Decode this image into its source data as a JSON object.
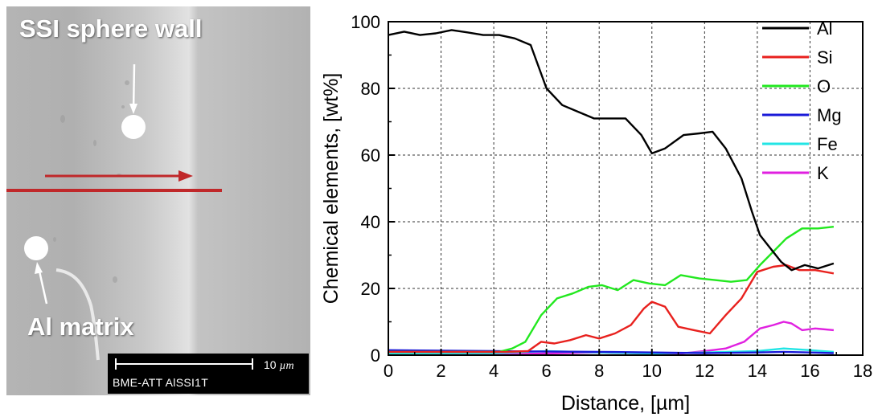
{
  "micrograph": {
    "label_wall": "SSI sphere wall",
    "label_matrix": "Al matrix",
    "scale_bar": {
      "value": "10",
      "unit": "µm"
    },
    "caption": "BME-ATT AlSSI1T",
    "colors": {
      "arrow": "#c0282a",
      "marker": "#ffffff"
    }
  },
  "chart_data": {
    "type": "line",
    "xlabel": "Distance, [µm]",
    "ylabel": "Chemical elements, [wt%]",
    "xlim": [
      0,
      18
    ],
    "ylim": [
      0,
      100
    ],
    "xticks": [
      0,
      2,
      4,
      6,
      8,
      10,
      12,
      14,
      16,
      18
    ],
    "yticks": [
      0,
      20,
      40,
      60,
      80,
      100
    ],
    "grid": true,
    "legend_position": "top-right",
    "series": [
      {
        "name": "Al",
        "color": "#000000",
        "points": [
          [
            0,
            96
          ],
          [
            0.6,
            97
          ],
          [
            1.2,
            96
          ],
          [
            1.8,
            96.5
          ],
          [
            2.4,
            97.5
          ],
          [
            3.0,
            96.8
          ],
          [
            3.6,
            96
          ],
          [
            4.2,
            96
          ],
          [
            4.8,
            95
          ],
          [
            5.4,
            93
          ],
          [
            6.0,
            80
          ],
          [
            6.6,
            75
          ],
          [
            7.2,
            73
          ],
          [
            7.8,
            71
          ],
          [
            8.4,
            71
          ],
          [
            9.0,
            71
          ],
          [
            9.6,
            66
          ],
          [
            10.0,
            60.5
          ],
          [
            10.5,
            62
          ],
          [
            11.2,
            66
          ],
          [
            11.8,
            66.5
          ],
          [
            12.3,
            67
          ],
          [
            12.8,
            62
          ],
          [
            13.4,
            53
          ],
          [
            13.8,
            43
          ],
          [
            14.1,
            36
          ],
          [
            14.5,
            32
          ],
          [
            14.9,
            28
          ],
          [
            15.3,
            25.5
          ],
          [
            15.8,
            27
          ],
          [
            16.3,
            26
          ],
          [
            16.9,
            27.5
          ]
        ]
      },
      {
        "name": "Si",
        "color": "#e8211e",
        "points": [
          [
            0,
            1
          ],
          [
            4.5,
            1
          ],
          [
            5.3,
            1.2
          ],
          [
            5.8,
            4
          ],
          [
            6.3,
            3.5
          ],
          [
            6.9,
            4.5
          ],
          [
            7.5,
            6
          ],
          [
            8.0,
            5
          ],
          [
            8.6,
            6.5
          ],
          [
            9.2,
            9
          ],
          [
            9.7,
            14
          ],
          [
            10.0,
            16
          ],
          [
            10.5,
            14.5
          ],
          [
            11.0,
            8.5
          ],
          [
            11.6,
            7.5
          ],
          [
            12.2,
            6.5
          ],
          [
            12.8,
            12
          ],
          [
            13.4,
            17
          ],
          [
            14.0,
            25
          ],
          [
            14.6,
            26.5
          ],
          [
            15.1,
            27
          ],
          [
            15.6,
            25.5
          ],
          [
            16.2,
            25.5
          ],
          [
            16.9,
            24.5
          ]
        ]
      },
      {
        "name": "O",
        "color": "#22e81f",
        "points": [
          [
            0,
            1
          ],
          [
            4.2,
            1
          ],
          [
            4.7,
            2
          ],
          [
            5.2,
            4
          ],
          [
            5.8,
            12
          ],
          [
            6.4,
            17
          ],
          [
            7.0,
            18.5
          ],
          [
            7.6,
            20.5
          ],
          [
            8.1,
            21
          ],
          [
            8.7,
            19.5
          ],
          [
            9.3,
            22.5
          ],
          [
            9.9,
            21.5
          ],
          [
            10.5,
            21
          ],
          [
            11.1,
            24
          ],
          [
            11.8,
            23
          ],
          [
            12.4,
            22.5
          ],
          [
            13.0,
            22
          ],
          [
            13.6,
            22.5
          ],
          [
            14.1,
            27
          ],
          [
            14.6,
            31
          ],
          [
            15.1,
            35
          ],
          [
            15.7,
            38
          ],
          [
            16.3,
            38
          ],
          [
            16.9,
            38.5
          ]
        ]
      },
      {
        "name": "Mg",
        "color": "#1a1ad8",
        "points": [
          [
            0,
            1.5
          ],
          [
            4,
            1.2
          ],
          [
            8,
            1
          ],
          [
            12,
            0.6
          ],
          [
            14,
            0.8
          ],
          [
            15,
            1
          ],
          [
            16,
            0.8
          ],
          [
            16.9,
            0.6
          ]
        ]
      },
      {
        "name": "Fe",
        "color": "#22e5e5",
        "points": [
          [
            0,
            0.5
          ],
          [
            4,
            0.6
          ],
          [
            6,
            1.2
          ],
          [
            8,
            0.8
          ],
          [
            10,
            0.5
          ],
          [
            12,
            0.8
          ],
          [
            14,
            1.2
          ],
          [
            15,
            2
          ],
          [
            16,
            1.5
          ],
          [
            16.9,
            1
          ]
        ]
      },
      {
        "name": "K",
        "color": "#e020e0",
        "points": [
          [
            0,
            0.3
          ],
          [
            4,
            0.3
          ],
          [
            6,
            0.5
          ],
          [
            8,
            0.8
          ],
          [
            10,
            0.5
          ],
          [
            11,
            0.4
          ],
          [
            12,
            1.2
          ],
          [
            12.8,
            2
          ],
          [
            13.5,
            4
          ],
          [
            14.1,
            8
          ],
          [
            14.6,
            9
          ],
          [
            15.0,
            10
          ],
          [
            15.3,
            9.5
          ],
          [
            15.7,
            7.5
          ],
          [
            16.2,
            8
          ],
          [
            16.9,
            7.5
          ]
        ]
      }
    ]
  }
}
